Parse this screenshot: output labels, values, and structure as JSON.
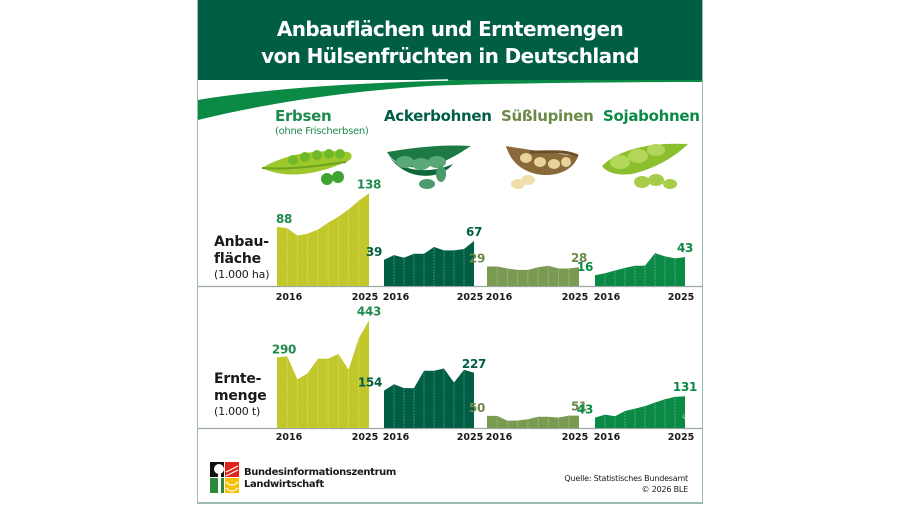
{
  "header": {
    "title_line1": "Anbauflächen und Erntemengen",
    "title_line2": "von Hülsenfrüchten in Deutschland",
    "bg_color": "#005e45",
    "swoosh_color": "#0a8a45"
  },
  "crops": [
    {
      "name": "Erbsen",
      "subtitle": "(ohne Frischerbsen)",
      "color": "#c2c82a",
      "label_color": "#1e8a4c",
      "icon": "pea-pod-icon"
    },
    {
      "name": "Ackerbohnen",
      "subtitle": "",
      "color": "#005e45",
      "label_color": "#005e45",
      "icon": "broad-bean-pod-icon"
    },
    {
      "name": "Süßlupinen",
      "subtitle": "",
      "color": "#7a9a52",
      "label_color": "#6b8a48",
      "icon": "lupin-pod-icon"
    },
    {
      "name": "Sojabohnen",
      "subtitle": "",
      "color": "#0a8a45",
      "label_color": "#0a8a45",
      "icon": "soybean-pod-icon"
    }
  ],
  "rows": {
    "area": {
      "label_line1": "Anbau-",
      "label_line2": "fläche",
      "unit": "(1.000 ha)"
    },
    "harvest": {
      "label_line1": "Ernte-",
      "label_line2": "menge",
      "unit": "(1.000 t)"
    }
  },
  "chart_data": [
    {
      "type": "area",
      "title": "Anbaufläche",
      "unit": "1.000 ha",
      "x": [
        2016,
        2017,
        2018,
        2019,
        2020,
        2021,
        2022,
        2023,
        2024,
        2025
      ],
      "tick_labels": [
        "2016",
        "2025"
      ],
      "ylim": [
        0,
        140
      ],
      "series": [
        {
          "name": "Erbsen",
          "values": [
            88,
            86,
            75,
            78,
            84,
            94,
            103,
            114,
            127,
            138
          ],
          "start_label": "88",
          "end_label": "138"
        },
        {
          "name": "Ackerbohnen",
          "values": [
            39,
            46,
            42,
            48,
            48,
            58,
            53,
            53,
            55,
            67
          ],
          "start_label": "39",
          "end_label": "67"
        },
        {
          "name": "Süßlupinen",
          "values": [
            29,
            29,
            26,
            24,
            24,
            28,
            30,
            26,
            26,
            28
          ],
          "start_label": "29",
          "end_label": "28"
        },
        {
          "name": "Sojabohnen",
          "values": [
            16,
            19,
            23,
            27,
            30,
            30,
            49,
            44,
            41,
            43
          ],
          "start_label": "16",
          "end_label": "43"
        }
      ]
    },
    {
      "type": "area",
      "title": "Erntemenge",
      "unit": "1.000 t",
      "x": [
        2016,
        2017,
        2018,
        2019,
        2020,
        2021,
        2022,
        2023,
        2024,
        2025
      ],
      "tick_labels": [
        "2016",
        "2025"
      ],
      "ylim": [
        0,
        450
      ],
      "series": [
        {
          "name": "Erbsen",
          "values": [
            290,
            295,
            200,
            225,
            285,
            285,
            305,
            240,
            370,
            443
          ],
          "start_label": "290",
          "end_label": "443"
        },
        {
          "name": "Ackerbohnen",
          "values": [
            154,
            180,
            164,
            164,
            236,
            236,
            245,
            187,
            240,
            227
          ],
          "start_label": "154",
          "end_label": "227"
        },
        {
          "name": "Süßlupinen",
          "values": [
            50,
            50,
            30,
            31,
            36,
            46,
            46,
            43,
            51,
            51
          ],
          "start_label": "50",
          "end_label": "51"
        },
        {
          "name": "Sojabohnen",
          "values": [
            43,
            55,
            48,
            70,
            80,
            90,
            105,
            118,
            128,
            131
          ],
          "start_label": "43",
          "end_label": "131"
        }
      ]
    }
  ],
  "footer": {
    "org_line1": "Bundesinformationszentrum",
    "org_line2": "Landwirtschaft",
    "source": "Quelle: Statistisches Bundesamt",
    "copyright": "© 2026 BLE",
    "watermark": "© BLE"
  }
}
